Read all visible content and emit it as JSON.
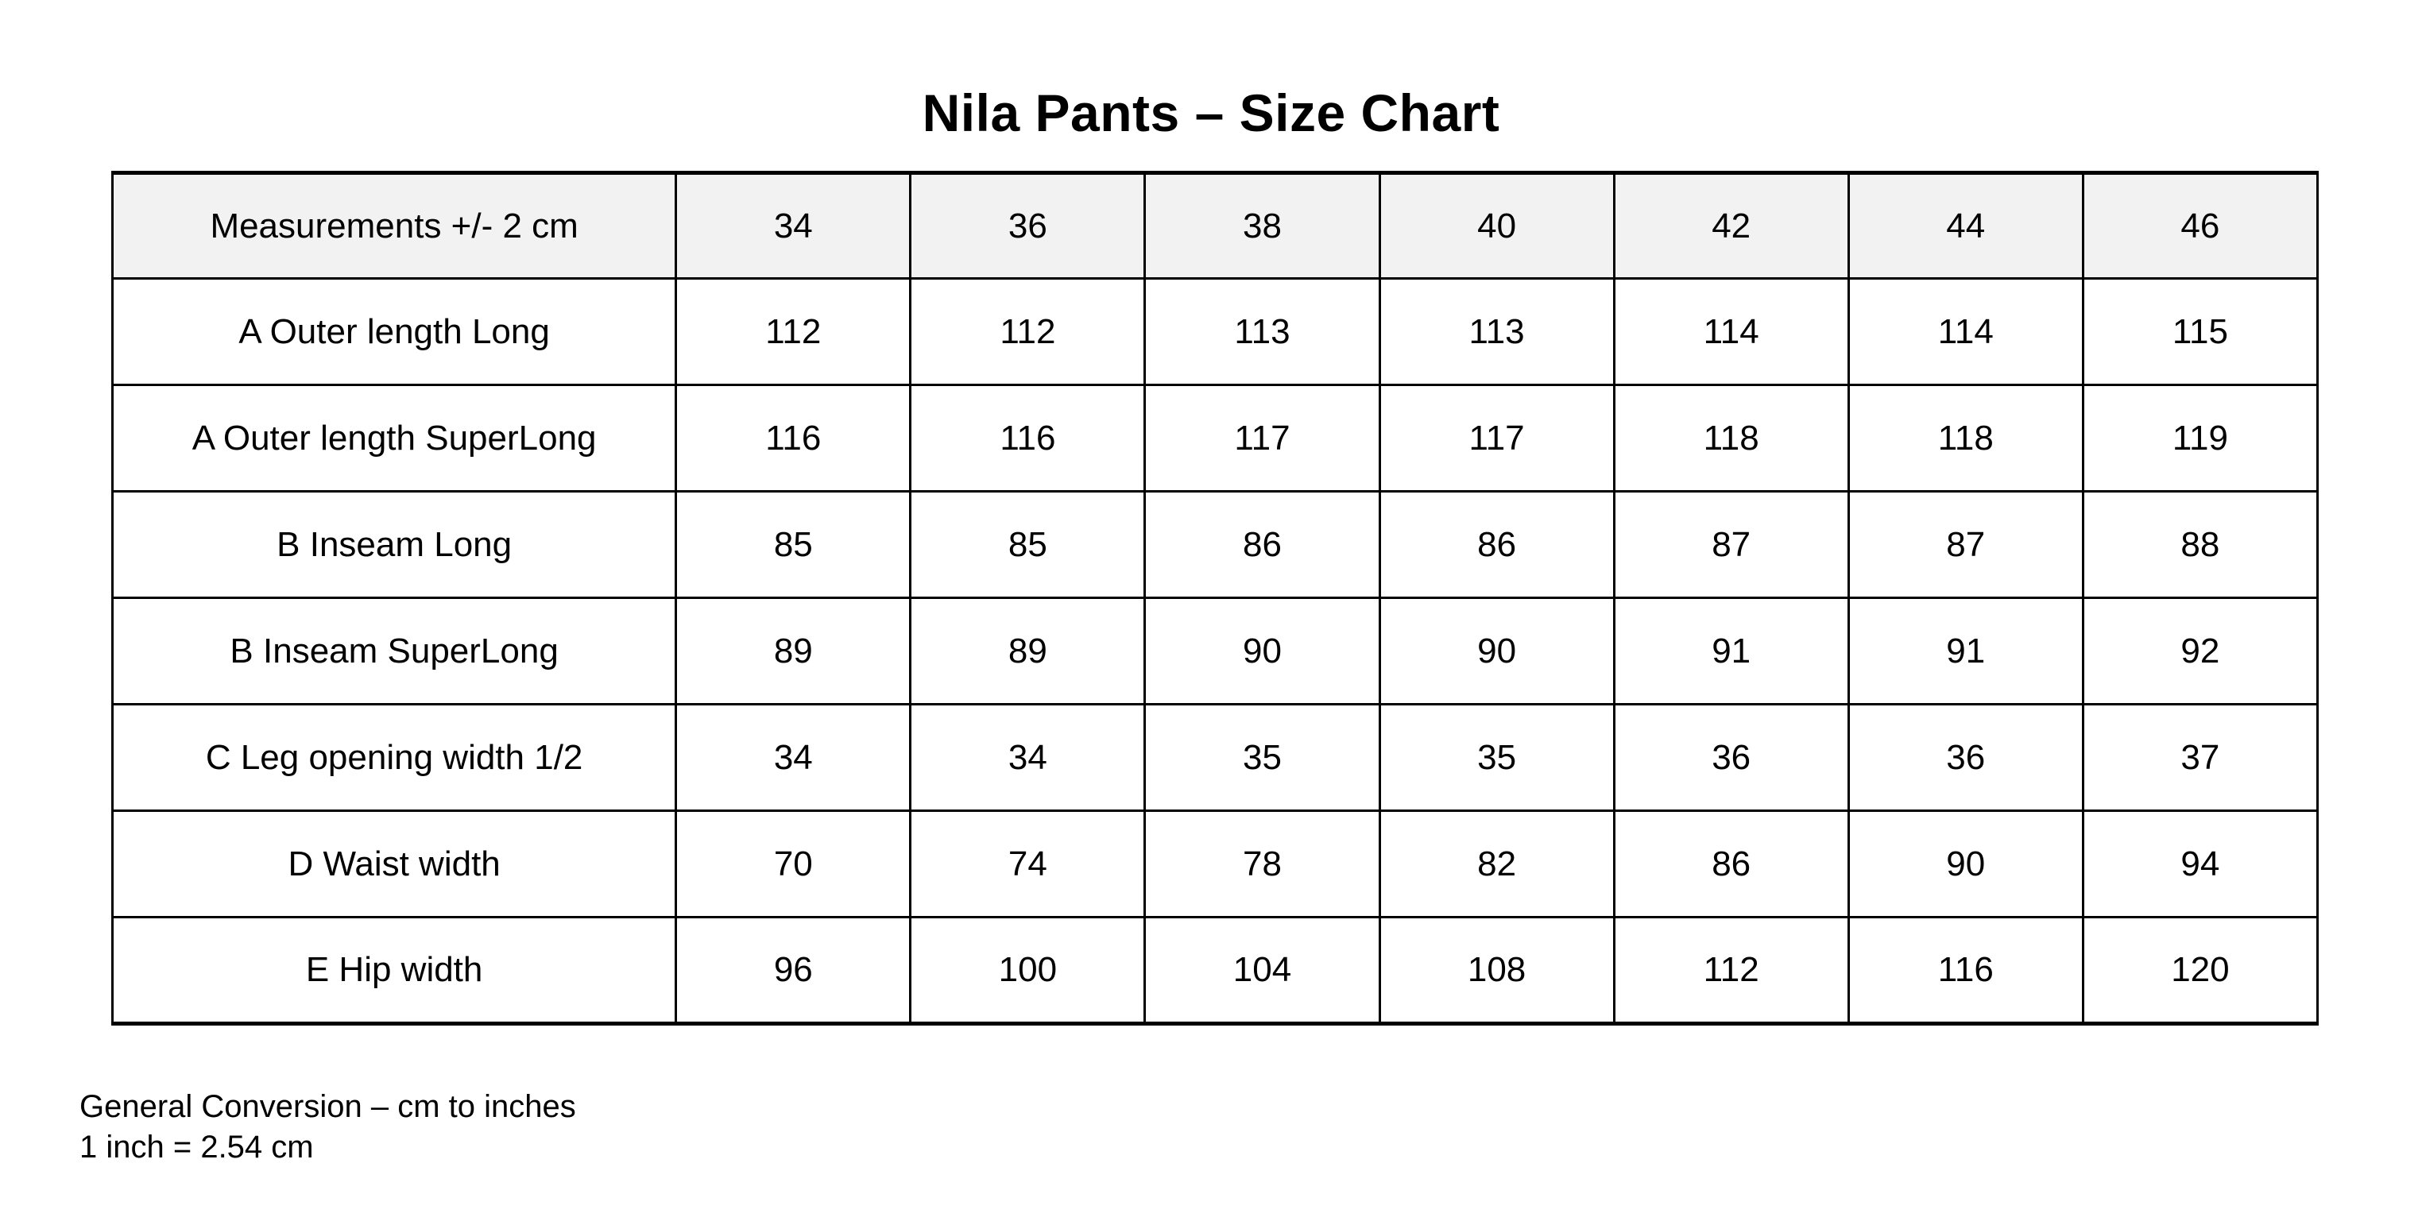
{
  "page": {
    "title": "Nila Pants – Size Chart"
  },
  "table": {
    "header": [
      "Measurements +/- 2 cm",
      "34",
      "36",
      "38",
      "40",
      "42",
      "44",
      "46"
    ],
    "rows": [
      {
        "label": "A Outer length Long",
        "values": [
          "112",
          "112",
          "113",
          "113",
          "114",
          "114",
          "115"
        ]
      },
      {
        "label": "A Outer length SuperLong",
        "values": [
          "116",
          "116",
          "117",
          "117",
          "118",
          "118",
          "119"
        ]
      },
      {
        "label": "B Inseam Long",
        "values": [
          "85",
          "85",
          "86",
          "86",
          "87",
          "87",
          "88"
        ]
      },
      {
        "label": "B Inseam SuperLong",
        "values": [
          "89",
          "89",
          "90",
          "90",
          "91",
          "91",
          "92"
        ]
      },
      {
        "label": "C Leg opening width 1/2",
        "values": [
          "34",
          "34",
          "35",
          "35",
          "36",
          "36",
          "37"
        ]
      },
      {
        "label": "D Waist width",
        "values": [
          "70",
          "74",
          "78",
          "82",
          "86",
          "90",
          "94"
        ]
      },
      {
        "label": "E Hip width",
        "values": [
          "96",
          "100",
          "104",
          "108",
          "112",
          "116",
          "120"
        ]
      }
    ]
  },
  "footer": {
    "line1": "General Conversion – cm to inches",
    "line2": "1 inch = 2.54 cm"
  },
  "colors": {
    "header_bg": "#f2f2f2",
    "border": "#000000",
    "text": "#000000",
    "page_bg": "#ffffff"
  }
}
